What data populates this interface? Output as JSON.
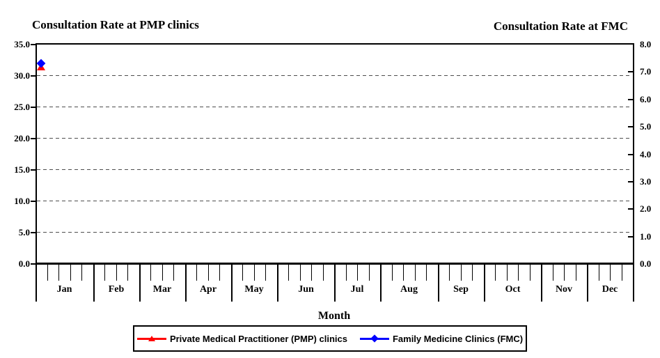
{
  "chart_data": {
    "type": "line",
    "title": "",
    "left_axis": {
      "title": "Consultation Rate at PMP clinics",
      "min": 0.0,
      "max": 35.0,
      "step": 5.0,
      "tick_labels": [
        "35.0",
        "30.0",
        "25.0",
        "20.0",
        "15.0",
        "10.0",
        "5.0",
        "0.0"
      ]
    },
    "right_axis": {
      "title": "Consultation Rate at FMC",
      "min": 0.0,
      "max": 8.0,
      "step": 1.0,
      "tick_labels": [
        "8.0",
        "7.0",
        "6.0",
        "5.0",
        "4.0",
        "3.0",
        "2.0",
        "1.0",
        "0.0"
      ]
    },
    "x_axis": {
      "title": "Month",
      "unit": "weeks grouped by month",
      "months": [
        {
          "label": "Jan",
          "weeks": 5
        },
        {
          "label": "Feb",
          "weeks": 4
        },
        {
          "label": "Mar",
          "weeks": 4
        },
        {
          "label": "Apr",
          "weeks": 4
        },
        {
          "label": "May",
          "weeks": 4
        },
        {
          "label": "Jun",
          "weeks": 5
        },
        {
          "label": "Jul",
          "weeks": 4
        },
        {
          "label": "Aug",
          "weeks": 5
        },
        {
          "label": "Sep",
          "weeks": 4
        },
        {
          "label": "Oct",
          "weeks": 5
        },
        {
          "label": "Nov",
          "weeks": 4
        },
        {
          "label": "Dec",
          "weeks": 4
        }
      ]
    },
    "grid": {
      "orientation": "horizontal",
      "style": "dashed",
      "at_left_axis_values": [
        30,
        25,
        20,
        15,
        10,
        5
      ],
      "color": "#4d4d4d"
    },
    "series": [
      {
        "id": "pmp",
        "name": "Private Medical Practitioner (PMP) clinics",
        "axis": "left",
        "color": "#ff0000",
        "marker": "triangle",
        "points": [
          {
            "month": "Jan",
            "week": 1,
            "value": 31.3
          }
        ]
      },
      {
        "id": "fmc",
        "name": "Family Medicine Clinics (FMC)",
        "axis": "right",
        "color": "#0000ff",
        "marker": "diamond",
        "points": [
          {
            "month": "Jan",
            "week": 1,
            "value": 7.3
          }
        ]
      }
    ],
    "legend_position": "bottom-center"
  }
}
